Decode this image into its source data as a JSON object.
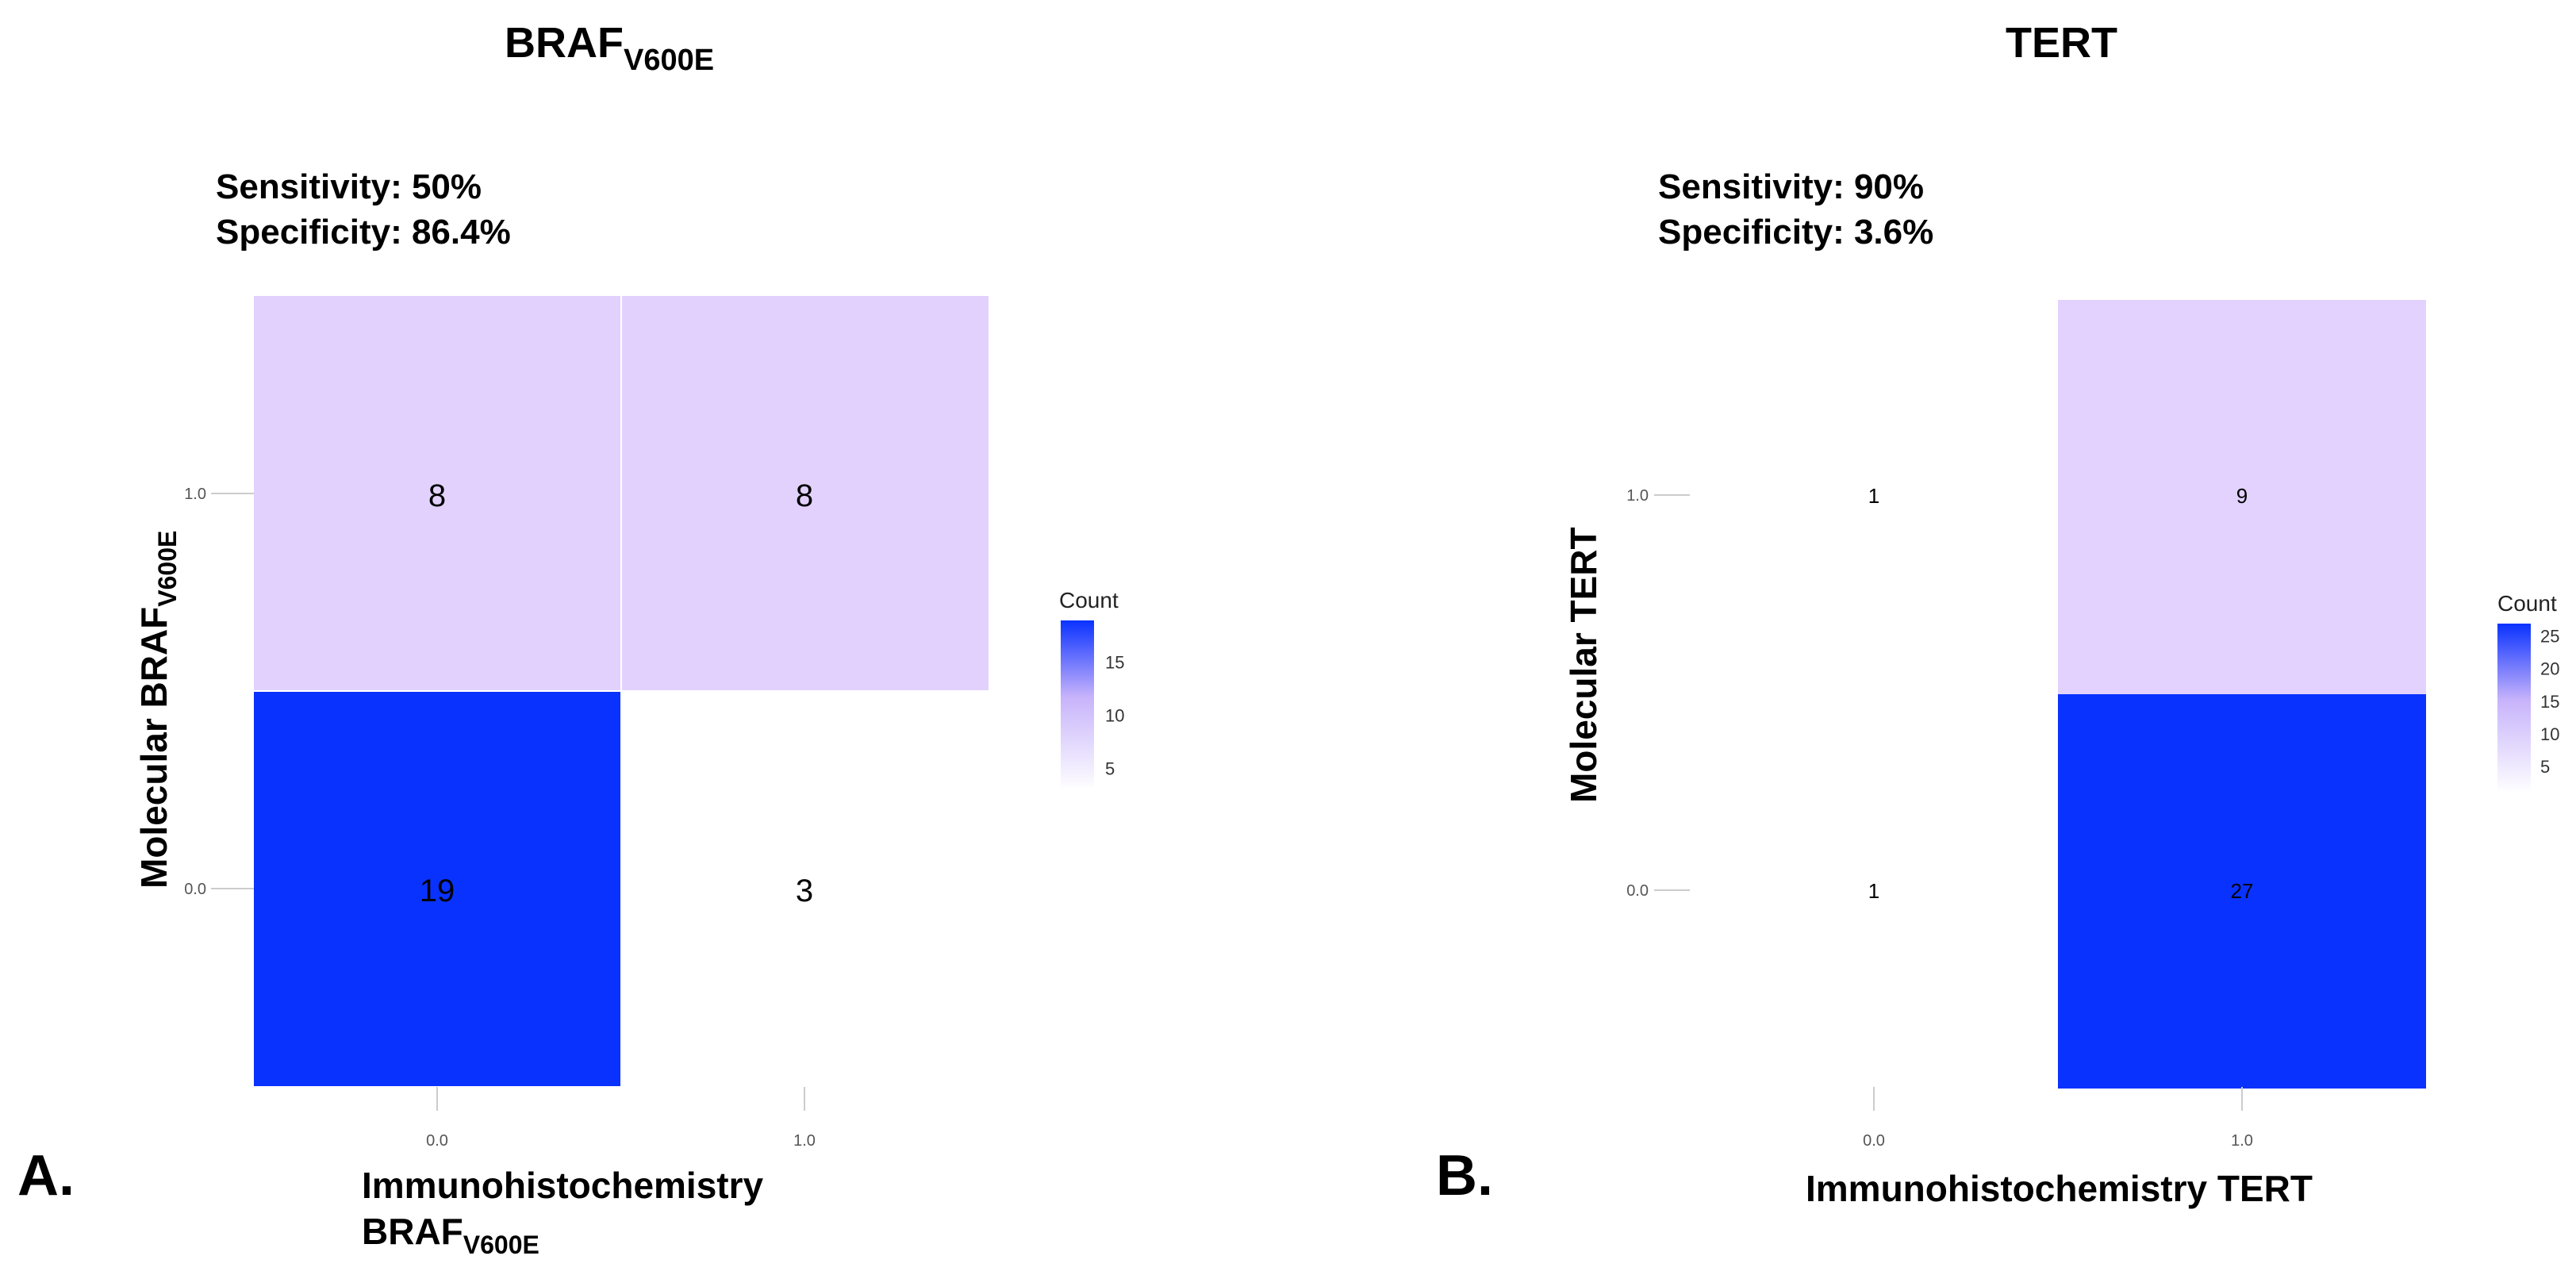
{
  "chart_data": [
    {
      "type": "heatmap",
      "panel_label": "A.",
      "title": "BRAF",
      "title_subscript": "V600E",
      "sensitivity": "Sensitivity: 50%",
      "specificity": "Specificity: 86.4%",
      "xlabel_line1": "Immunohistochemistry",
      "xlabel_line2": "BRAF",
      "xlabel_subscript": "V600E",
      "ylabel": "Molecular BRAF",
      "ylabel_subscript": "V600E",
      "x_categories": [
        "0.0",
        "1.0"
      ],
      "y_categories": [
        "1.0",
        "0.0"
      ],
      "cells": [
        {
          "x": "0.0",
          "y": "1.0",
          "value": 8,
          "label": "8"
        },
        {
          "x": "1.0",
          "y": "1.0",
          "value": 8,
          "label": "8"
        },
        {
          "x": "0.0",
          "y": "0.0",
          "value": 19,
          "label": "19"
        },
        {
          "x": "1.0",
          "y": "0.0",
          "value": 3,
          "label": "3"
        }
      ],
      "legend": {
        "title": "Count",
        "min": 3,
        "max": 19,
        "ticks": [
          "5",
          "10",
          "15"
        ],
        "tick_values": [
          5,
          10,
          15
        ]
      },
      "colors": {
        "low": "#ffffff",
        "high": "#0a32ff"
      }
    },
    {
      "type": "heatmap",
      "panel_label": "B.",
      "title": "TERT",
      "sensitivity": "Sensitivity: 90%",
      "specificity": "Specificity: 3.6%",
      "xlabel_line1": "Immunohistochemistry TERT",
      "ylabel": "Molecular TERT",
      "x_categories": [
        "0.0",
        "1.0"
      ],
      "y_categories": [
        "1.0",
        "0.0"
      ],
      "cells": [
        {
          "x": "0.0",
          "y": "1.0",
          "value": 1,
          "label": "1"
        },
        {
          "x": "1.0",
          "y": "1.0",
          "value": 9,
          "label": "9"
        },
        {
          "x": "0.0",
          "y": "0.0",
          "value": 1,
          "label": "1"
        },
        {
          "x": "1.0",
          "y": "0.0",
          "value": 27,
          "label": "27"
        }
      ],
      "legend": {
        "title": "Count",
        "min": 1,
        "max": 27,
        "ticks": [
          "5",
          "10",
          "15",
          "20",
          "25"
        ],
        "tick_values": [
          5,
          10,
          15,
          20,
          25
        ]
      },
      "colors": {
        "low": "#ffffff",
        "high": "#0a32ff"
      }
    }
  ]
}
